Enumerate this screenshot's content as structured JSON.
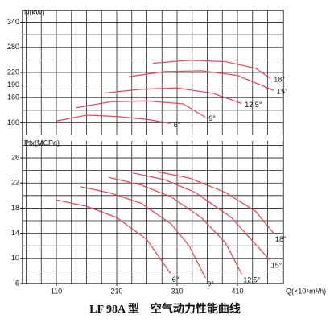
{
  "title": "LF 98A 型　空气动力性能曲线",
  "chart_data": [
    {
      "type": "line",
      "y_label": "N(kW)",
      "xlim": [
        54,
        486
      ],
      "ylim": [
        70,
        368
      ],
      "yticks": [
        100,
        160,
        190,
        220,
        280,
        340
      ],
      "xgrid": [
        60,
        85,
        110,
        135,
        160,
        185,
        210,
        235,
        260,
        285,
        310,
        335,
        360,
        385,
        410,
        435,
        460,
        485
      ],
      "ygrid": [
        100,
        130,
        160,
        190,
        220,
        250,
        280,
        310,
        340
      ],
      "series": [
        {
          "name": "6°",
          "color": "#e0505a",
          "x": [
            110,
            160,
            210,
            260,
            299
          ],
          "values": [
            104,
            118,
            115,
            108,
            98
          ]
        },
        {
          "name": "9°",
          "color": "#e0505a",
          "x": [
            143,
            200,
            260,
            320,
            357
          ],
          "values": [
            136,
            150,
            152,
            145,
            113
          ]
        },
        {
          "name": "12.5°",
          "color": "#e0505a",
          "x": [
            190,
            250,
            310,
            370,
            417
          ],
          "values": [
            171,
            180,
            183,
            170,
            146
          ]
        },
        {
          "name": "15°",
          "color": "#e0505a",
          "x": [
            230,
            290,
            350,
            410,
            470
          ],
          "values": [
            210,
            222,
            224,
            213,
            177
          ]
        },
        {
          "name": "18°",
          "color": "#e0505a",
          "x": [
            270,
            330,
            390,
            440,
            465
          ],
          "values": [
            242,
            249,
            246,
            230,
            206
          ]
        }
      ]
    },
    {
      "type": "line",
      "y_label": "Ptx(MCPa)",
      "x_label": "Q(×10⁴m³/h)",
      "xlim": [
        54,
        486
      ],
      "ylim": [
        6,
        28.7
      ],
      "xticks": [
        110,
        210,
        310,
        410
      ],
      "yticks": [
        6,
        10,
        14,
        18,
        22,
        26
      ],
      "xgrid": [
        60,
        85,
        110,
        135,
        160,
        185,
        210,
        235,
        260,
        285,
        310,
        335,
        360,
        385,
        410,
        435,
        460,
        485
      ],
      "ygrid": [
        8,
        10,
        12,
        14,
        16,
        18,
        20,
        22,
        24,
        26,
        28
      ],
      "series": [
        {
          "name": "6°",
          "color": "#e0505a",
          "x": [
            110,
            160,
            210,
            260,
            299
          ],
          "values": [
            19.3,
            18.3,
            16.5,
            13,
            7.6
          ]
        },
        {
          "name": "9°",
          "color": "#e0505a",
          "x": [
            150,
            200,
            250,
            300,
            330,
            357
          ],
          "values": [
            21.4,
            20.4,
            18.8,
            15.5,
            12,
            6.9
          ]
        },
        {
          "name": "12.5°",
          "color": "#e0505a",
          "x": [
            197,
            250,
            300,
            350,
            390,
            417
          ],
          "values": [
            22.9,
            21.7,
            19.8,
            16.5,
            12.5,
            7.5
          ]
        },
        {
          "name": "15°",
          "color": "#e0505a",
          "x": [
            237,
            290,
            340,
            400,
            463
          ],
          "values": [
            23.6,
            22.5,
            20.5,
            16.5,
            9.8
          ]
        },
        {
          "name": "18°",
          "color": "#e0505a",
          "x": [
            277,
            330,
            390,
            440,
            470
          ],
          "values": [
            23.8,
            22.8,
            20.5,
            17.5,
            14
          ]
        }
      ]
    }
  ]
}
